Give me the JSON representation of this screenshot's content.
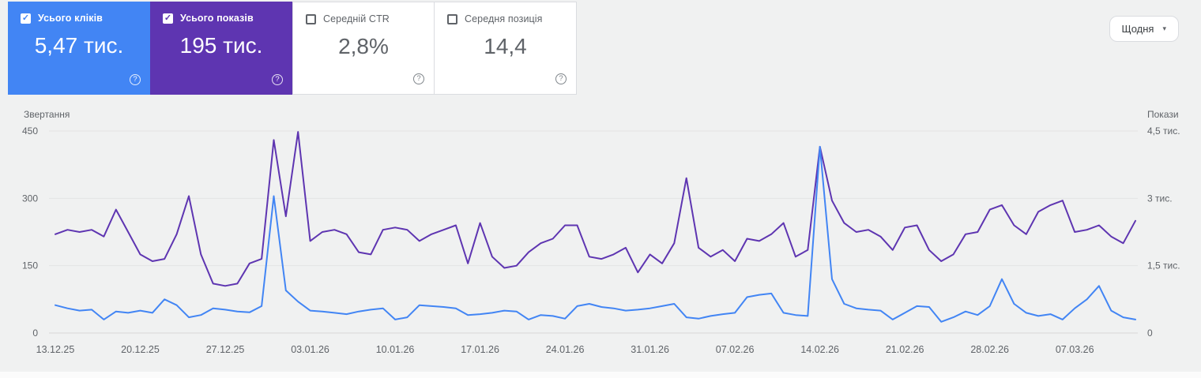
{
  "cards": [
    {
      "label": "Усього кліків",
      "value": "5,47 тис.",
      "checked": true,
      "bg": "#4285f4"
    },
    {
      "label": "Усього показів",
      "value": "195 тис.",
      "checked": true,
      "bg": "#5e35b1"
    },
    {
      "label": "Середній CTR",
      "value": "2,8%",
      "checked": false,
      "bg": "#ffffff"
    },
    {
      "label": "Середня позиція",
      "value": "14,4",
      "checked": false,
      "bg": "#ffffff"
    }
  ],
  "controls": {
    "granularity": "Щодня"
  },
  "icons": {
    "help_glyph": "?",
    "caret_glyph": "▾",
    "check_glyph": "✓"
  },
  "chart_data": {
    "type": "line",
    "left_axis": {
      "title": "Звертання",
      "ticks": [
        "0",
        "150",
        "300",
        "450"
      ],
      "range": [
        0,
        450
      ]
    },
    "right_axis": {
      "title": "Покази",
      "ticks": [
        "0",
        "1,5 тис.",
        "3 тис.",
        "4,5 тис."
      ],
      "range": [
        0,
        4500
      ]
    },
    "x_ticks": [
      "13.12.25",
      "20.12.25",
      "27.12.25",
      "03.01.26",
      "10.01.26",
      "17.01.26",
      "24.01.26",
      "31.01.26",
      "07.02.26",
      "14.02.26",
      "21.02.26",
      "28.02.26",
      "07.03.26"
    ],
    "grid": true,
    "series": [
      {
        "name": "clicks",
        "color": "#4285f4",
        "axis": "left",
        "values": [
          62,
          55,
          50,
          52,
          30,
          48,
          45,
          50,
          45,
          75,
          62,
          35,
          40,
          55,
          52,
          48,
          46,
          60,
          305,
          95,
          70,
          50,
          48,
          45,
          42,
          48,
          52,
          55,
          30,
          35,
          62,
          60,
          58,
          55,
          40,
          42,
          45,
          50,
          48,
          30,
          40,
          38,
          32,
          60,
          65,
          58,
          55,
          50,
          52,
          55,
          60,
          65,
          35,
          32,
          38,
          42,
          45,
          80,
          85,
          88,
          45,
          40,
          38,
          415,
          120,
          65,
          55,
          52,
          50,
          30,
          45,
          60,
          58,
          25,
          35,
          48,
          40,
          60,
          120,
          65,
          45,
          38,
          42,
          30,
          55,
          75,
          105,
          50,
          35,
          30
        ]
      },
      {
        "name": "impressions",
        "color": "#5e35b1",
        "axis": "right",
        "values": [
          2200,
          2300,
          2250,
          2300,
          2150,
          2750,
          2250,
          1750,
          1600,
          1650,
          2200,
          3050,
          1750,
          1100,
          1050,
          1100,
          1550,
          1650,
          4300,
          2600,
          4480,
          2050,
          2250,
          2300,
          2200,
          1800,
          1750,
          2300,
          2350,
          2300,
          2050,
          2200,
          2300,
          2400,
          1550,
          2450,
          1700,
          1450,
          1500,
          1800,
          2000,
          2100,
          2400,
          2400,
          1700,
          1650,
          1750,
          1900,
          1350,
          1750,
          1550,
          2000,
          3450,
          1900,
          1700,
          1850,
          1600,
          2100,
          2050,
          2200,
          2450,
          1700,
          1850,
          4150,
          2950,
          2450,
          2250,
          2300,
          2150,
          1850,
          2350,
          2400,
          1850,
          1600,
          1750,
          2200,
          2250,
          2750,
          2850,
          2400,
          2200,
          2700,
          2850,
          2950,
          2250,
          2300,
          2400,
          2150,
          2000,
          2500
        ]
      }
    ]
  }
}
